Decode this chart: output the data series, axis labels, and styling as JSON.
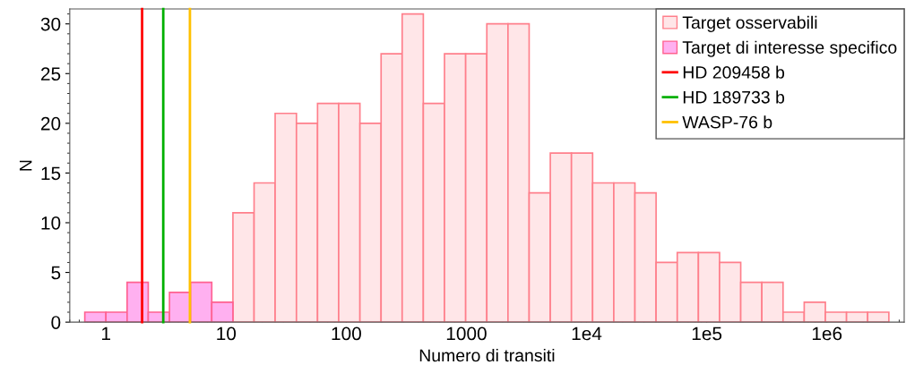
{
  "chart_data": {
    "type": "histogram",
    "xlabel": "Numero di transiti",
    "ylabel": "N",
    "log": "x",
    "bins": [
      0.667,
      1.0,
      1.5,
      2.25,
      3.38,
      5.06,
      7.6,
      11.4,
      17.1,
      25.6,
      38.5,
      57.7,
      86.5,
      130,
      195,
      292,
      438,
      657,
      986,
      1479,
      2218,
      3328,
      4992,
      7487,
      11230,
      16850,
      25270,
      37900,
      56860,
      85290,
      127900,
      191900,
      287800,
      431800,
      647700,
      971600,
      1457000,
      2186000,
      3280000
    ],
    "series": [
      {
        "name": "Target osservabili",
        "color": "#ffe6e8",
        "values": [
          null,
          null,
          null,
          null,
          null,
          null,
          null,
          11,
          14,
          21,
          20,
          22,
          22,
          20,
          27,
          31,
          22,
          27,
          27,
          30,
          30,
          13,
          17,
          17,
          14,
          14,
          13,
          6,
          7,
          7,
          6,
          4,
          4,
          1,
          2,
          1,
          1,
          1
        ]
      },
      {
        "name": "Target di interesse specifico",
        "color": "#ffb0f0",
        "values": [
          1,
          1,
          4,
          1,
          3,
          4,
          2,
          null,
          null,
          null,
          null,
          null,
          null,
          null,
          null,
          null,
          null,
          null,
          null,
          null,
          null,
          null,
          null,
          null,
          null,
          null,
          null,
          null,
          null,
          null,
          null,
          null,
          null,
          null,
          null,
          null,
          null,
          null
        ]
      },
      {
        "type": "line",
        "name": "HD 209458 b",
        "color": "#ff0000",
        "x": [
          2,
          2
        ],
        "values": [
          0,
          31.5
        ]
      },
      {
        "type": "line",
        "name": "HD 189733 b",
        "color": "#00b000",
        "x": [
          3,
          3
        ],
        "values": [
          0,
          31.5
        ]
      },
      {
        "type": "line",
        "name": "WASP-76 b",
        "color": "#ffc000",
        "x": [
          5,
          5
        ],
        "values": [
          0,
          31.5
        ]
      }
    ],
    "xlim": [
      0.5,
      4400000
    ],
    "ylim": [
      0,
      31.5
    ],
    "xticks": [
      1,
      10,
      100,
      1000,
      {
        "value": 10000,
        "label": "1e4"
      },
      {
        "value": 100000,
        "label": "1e5"
      },
      {
        "value": 1000000,
        "label": "1e6"
      }
    ],
    "yticks": [
      0,
      5,
      10,
      15,
      20,
      25,
      30
    ],
    "grid": false,
    "legend": "top right"
  }
}
